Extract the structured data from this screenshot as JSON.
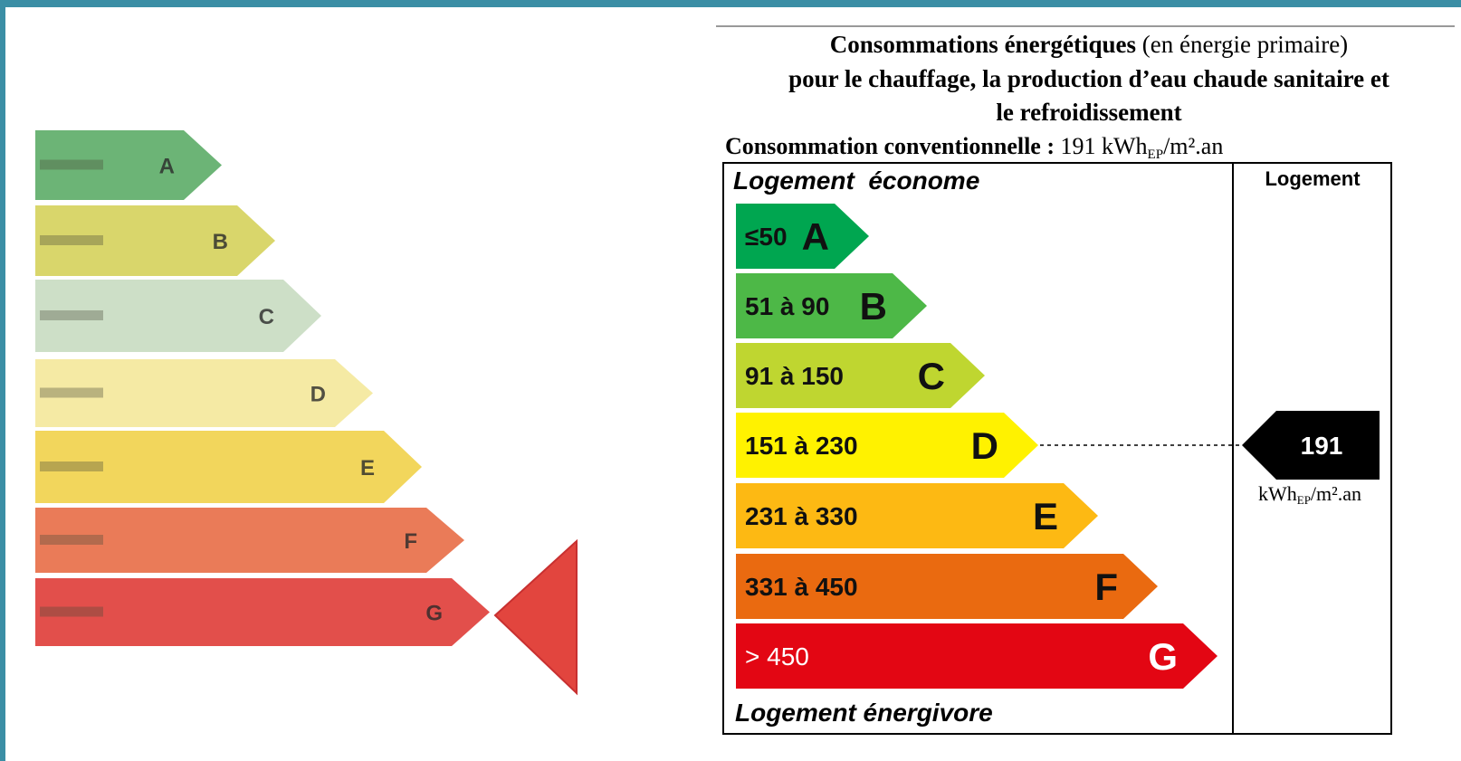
{
  "left_label": {
    "classes": [
      "A",
      "B",
      "C",
      "D",
      "E",
      "F",
      "G"
    ]
  },
  "right_label": {
    "title": {
      "bold_1": "Consommations énergétiques",
      "normal_1": "(en énergie primaire)",
      "line_2": "pour le chauffage, la production d’eau chaude sanitaire et",
      "line_3": "le refroidissement"
    },
    "conventional": {
      "label": "Consommation conventionnelle :",
      "value": 191,
      "unit": "kWh",
      "unit_sub": "EP",
      "unit_rest": "/m².an"
    },
    "top_label": "Logement  économe",
    "bottom_label": "Logement énergivore",
    "column_header": "Logement",
    "classes": [
      {
        "range": "≤50",
        "letter": "A"
      },
      {
        "range": "51 à 90",
        "letter": "B"
      },
      {
        "range": "91 à 150",
        "letter": "C"
      },
      {
        "range": "151 à 230",
        "letter": "D"
      },
      {
        "range": "231 à 330",
        "letter": "E"
      },
      {
        "range": "331 à 450",
        "letter": "F"
      },
      {
        "range": "> 450",
        "letter": "G"
      }
    ],
    "indicator": {
      "value": 191,
      "unit": "kWh",
      "unit_sub": "EP",
      "unit_rest": "/m².an"
    }
  }
}
